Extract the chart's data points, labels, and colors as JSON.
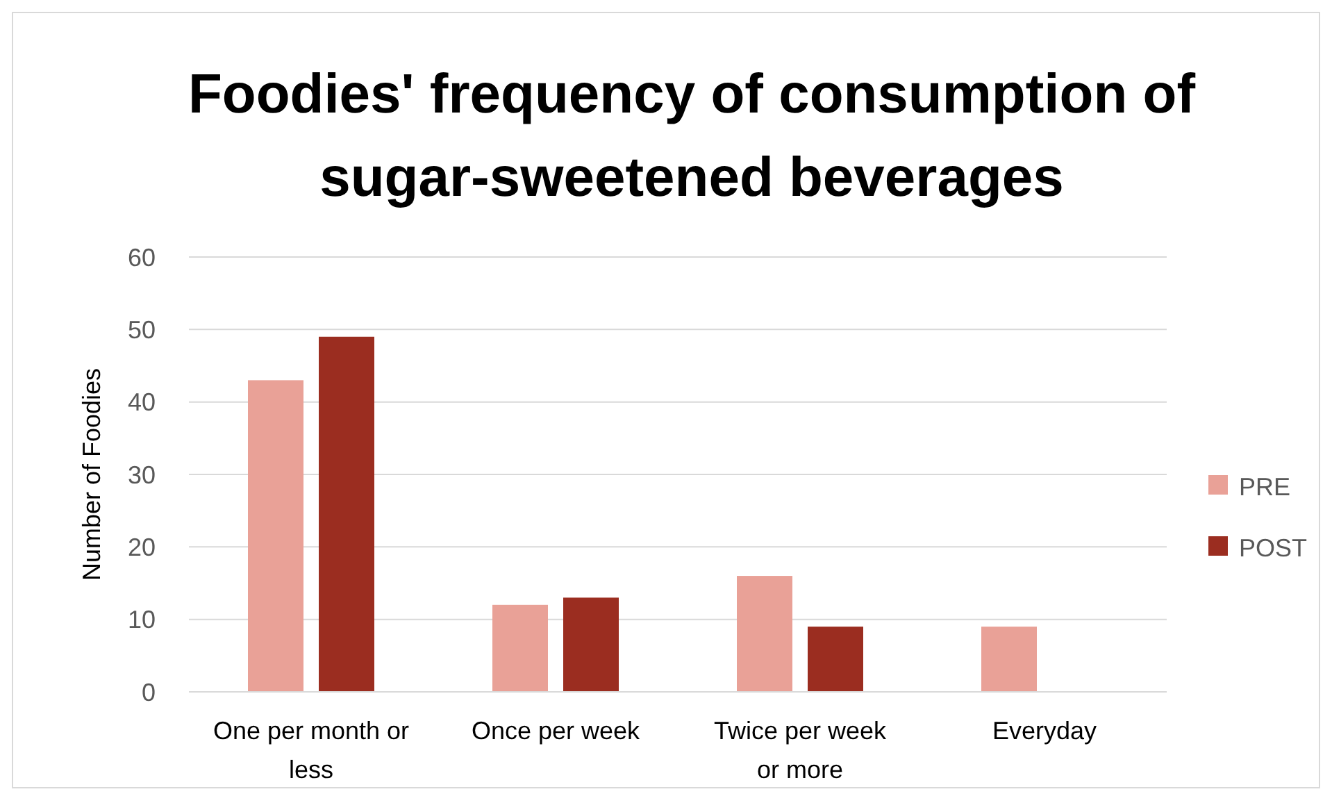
{
  "chart_data": {
    "type": "bar",
    "title": "Foodies' frequency of consumption of sugar-sweetened beverages",
    "ylabel": "Number of Foodies",
    "categories": [
      "One per month or less",
      "Once per week",
      "Twice per week or more",
      "Everyday"
    ],
    "series": [
      {
        "name": "PRE",
        "color": "#e9a197",
        "values": [
          43,
          12,
          16,
          9
        ]
      },
      {
        "name": "POST",
        "color": "#9b2d20",
        "values": [
          49,
          13,
          9,
          0
        ]
      }
    ],
    "ylim": [
      0,
      60
    ],
    "yticks": [
      0,
      10,
      20,
      30,
      40,
      50,
      60
    ],
    "grid": "y",
    "legend": "right"
  }
}
